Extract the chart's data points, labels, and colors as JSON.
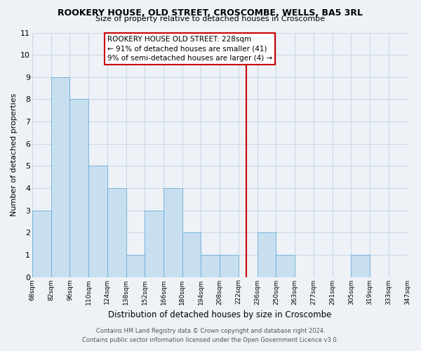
{
  "title": "ROOKERY HOUSE, OLD STREET, CROSCOMBE, WELLS, BA5 3RL",
  "subtitle": "Size of property relative to detached houses in Croscombe",
  "xlabel": "Distribution of detached houses by size in Croscombe",
  "ylabel": "Number of detached properties",
  "bin_edges": [
    68,
    82,
    96,
    110,
    124,
    138,
    152,
    166,
    180,
    194,
    208,
    222,
    236,
    250,
    263,
    277,
    291,
    305,
    319,
    333,
    347
  ],
  "bin_labels": [
    "68sqm",
    "82sqm",
    "96sqm",
    "110sqm",
    "124sqm",
    "138sqm",
    "152sqm",
    "166sqm",
    "180sqm",
    "194sqm",
    "208sqm",
    "222sqm",
    "236sqm",
    "250sqm",
    "263sqm",
    "277sqm",
    "291sqm",
    "305sqm",
    "319sqm",
    "333sqm",
    "347sqm"
  ],
  "bar_heights": [
    3,
    9,
    8,
    5,
    4,
    1,
    3,
    4,
    2,
    1,
    1,
    0,
    2,
    1,
    0,
    0,
    0,
    1,
    0,
    0
  ],
  "bar_color": "#c8dff0",
  "bar_edge_color": "#6aaed6",
  "grid_color": "#c8d8e8",
  "property_value": 228,
  "property_line_color": "#cc0000",
  "annotation_text": "ROOKERY HOUSE OLD STREET: 228sqm\n← 91% of detached houses are smaller (41)\n9% of semi-detached houses are larger (4) →",
  "annotation_box_color": "#ffffff",
  "annotation_box_edge_color": "#cc0000",
  "ylim": [
    0,
    11
  ],
  "yticks": [
    0,
    1,
    2,
    3,
    4,
    5,
    6,
    7,
    8,
    9,
    10,
    11
  ],
  "footnote1": "Contains HM Land Registry data © Crown copyright and database right 2024.",
  "footnote2": "Contains public sector information licensed under the Open Government Licence v3.0.",
  "bg_color": "#eef2f7"
}
